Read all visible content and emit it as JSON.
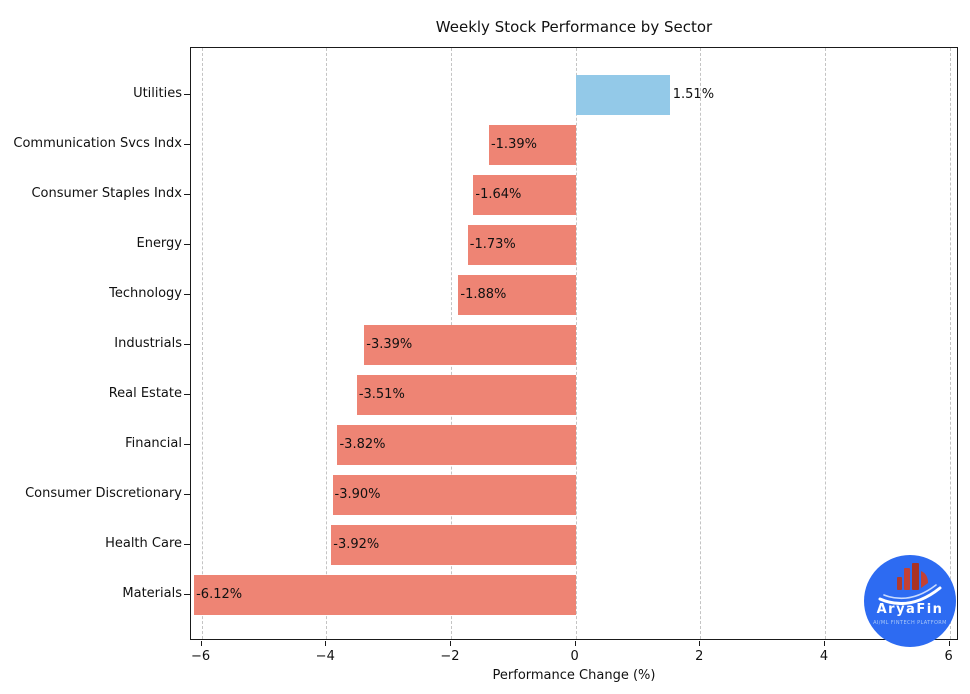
{
  "chart_data": {
    "type": "bar",
    "orientation": "horizontal",
    "title": "Weekly Stock Performance by Sector",
    "xlabel": "Performance Change (%)",
    "categories": [
      "Utilities",
      "Communication Svcs Indx",
      "Consumer Staples Indx",
      "Energy",
      "Technology",
      "Industrials",
      "Real Estate",
      "Financial",
      "Consumer Discretionary",
      "Health Care",
      "Materials"
    ],
    "values": [
      1.51,
      -1.39,
      -1.64,
      -1.73,
      -1.88,
      -3.39,
      -3.51,
      -3.82,
      -3.9,
      -3.92,
      -6.12
    ],
    "value_labels": [
      "1.51%",
      "-1.39%",
      "-1.64%",
      "-1.73%",
      "-1.88%",
      "-3.39%",
      "-3.51%",
      "-3.82%",
      "-3.90%",
      "-3.92%",
      "-6.12%"
    ],
    "xticks": [
      -6,
      -4,
      -2,
      0,
      2,
      4,
      6
    ],
    "xtick_labels": [
      "−6",
      "−4",
      "−2",
      "0",
      "2",
      "4",
      "6"
    ],
    "xlim": [
      -6.17,
      6.15
    ],
    "grid": {
      "axis": "x",
      "style": "dashed",
      "color": "#c4c4c4"
    },
    "colors": {
      "positive": "#93C9E8",
      "negative": "#EE8474"
    }
  },
  "logo": {
    "brand": "AryaFin",
    "tagline": "AI/ML FINTECH PLATFORM",
    "circle_color": "#2D6BF2",
    "icon_red": "#C0392B"
  }
}
